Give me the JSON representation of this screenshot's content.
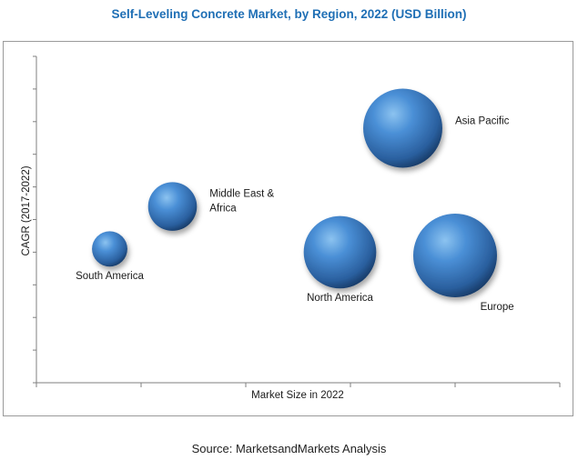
{
  "chart_data": {
    "type": "bubble",
    "title": "Self-Leveling Concrete Market, by Region, 2022 (USD Billion)",
    "xlabel": "Market Size in 2022",
    "ylabel": "CAGR (2017-2022)",
    "grid": false,
    "legend": "none",
    "bubble_color": "#2f6db5",
    "points": [
      {
        "label": "South America",
        "label_lines": [
          "South America"
        ],
        "x": 0.7,
        "y": 4.1,
        "size": 1.0
      },
      {
        "label": "Middle East & Africa",
        "label_lines": [
          "Middle East &",
          "Africa"
        ],
        "x": 1.3,
        "y": 5.4,
        "size": 1.9
      },
      {
        "label": "North America",
        "label_lines": [
          "North America"
        ],
        "x": 2.9,
        "y": 4.0,
        "size": 4.2
      },
      {
        "label": "Asia Pacific",
        "label_lines": [
          "Asia Pacific"
        ],
        "x": 3.5,
        "y": 7.8,
        "size": 5.0
      },
      {
        "label": "Europe",
        "label_lines": [
          "Europe"
        ],
        "x": 4.0,
        "y": 3.9,
        "size": 5.6
      }
    ]
  },
  "source": "Source: MarketsandMarkets Analysis"
}
